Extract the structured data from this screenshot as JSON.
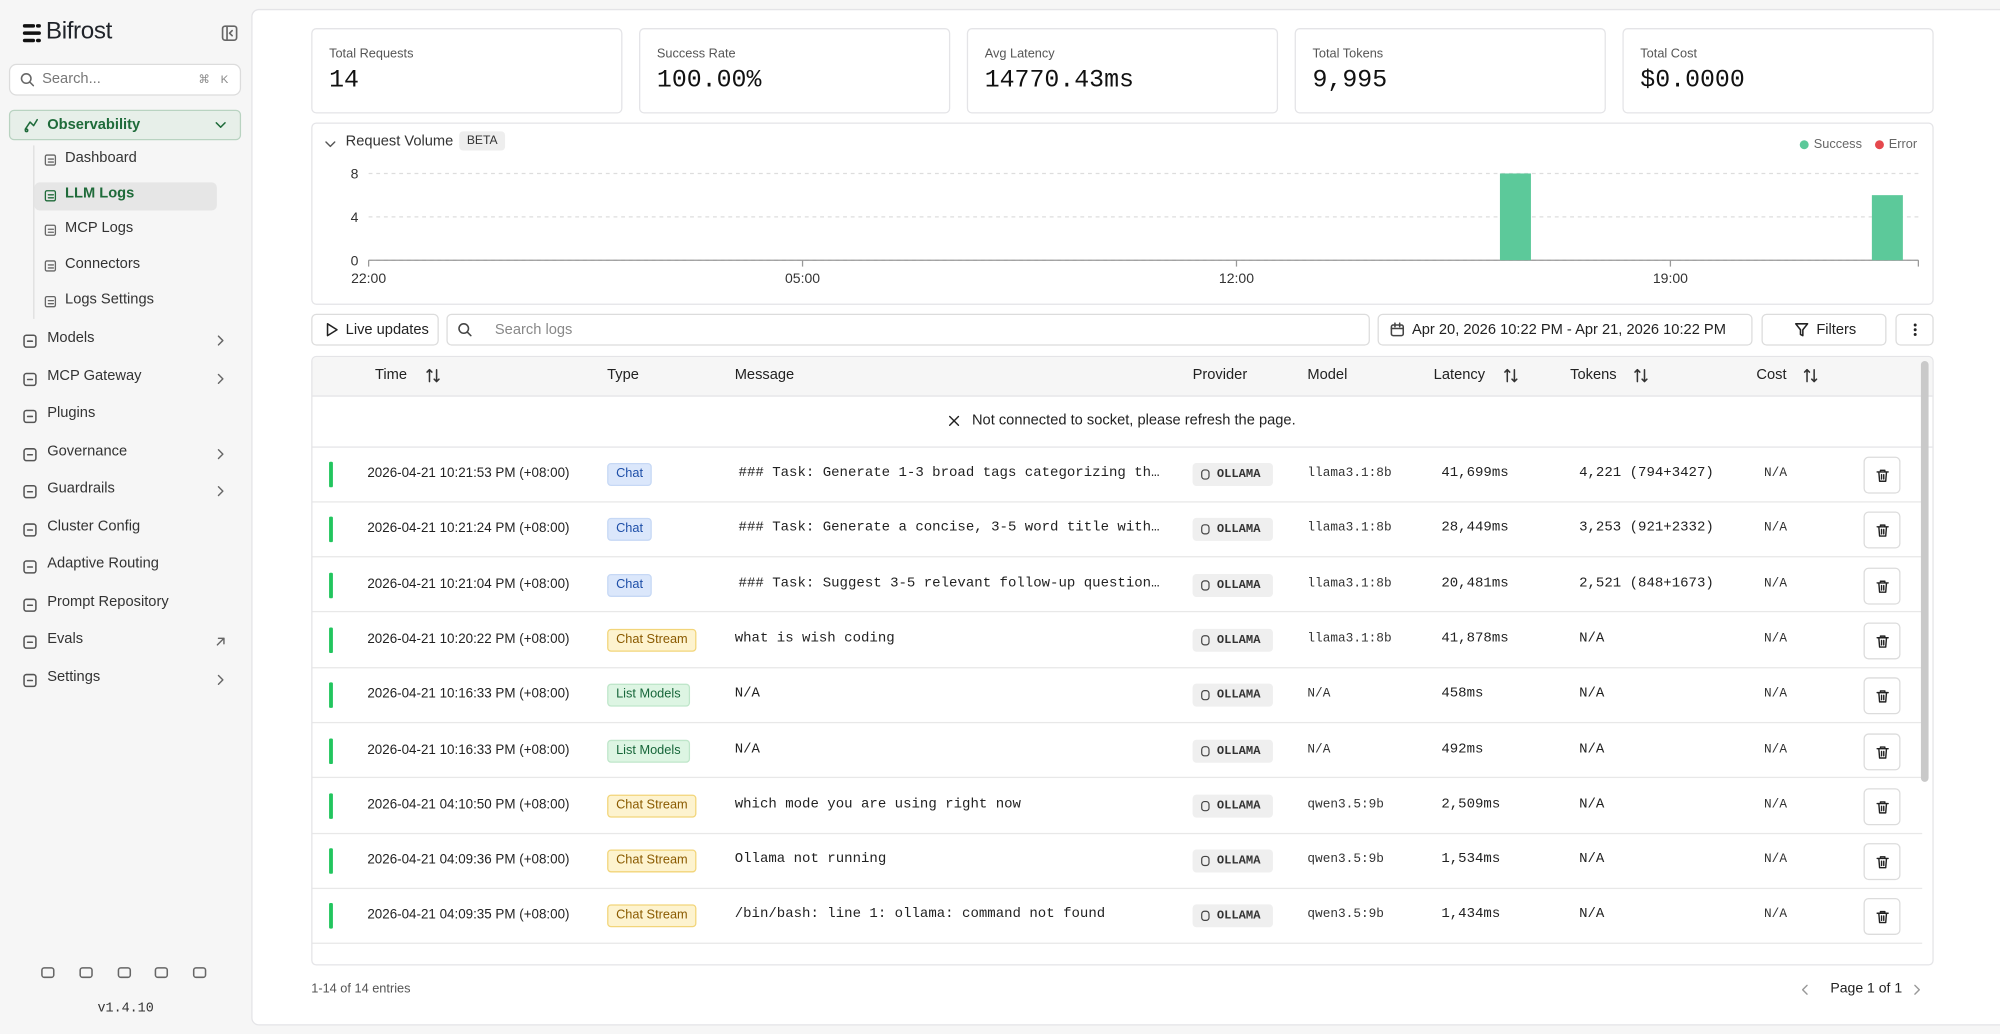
{
  "sidebar": {
    "brand": "Bifrost",
    "search_placeholder": "Search...",
    "search_shortcut": "⌘ K",
    "nav": [
      {
        "label": "Observability",
        "items": [
          "Dashboard",
          "LLM Logs",
          "MCP Logs",
          "Connectors",
          "Logs Settings"
        ]
      },
      {
        "label": "Models"
      },
      {
        "label": "MCP Gateway"
      },
      {
        "label": "Plugins"
      },
      {
        "label": "Governance"
      },
      {
        "label": "Guardrails"
      },
      {
        "label": "Cluster Config"
      },
      {
        "label": "Adaptive Routing"
      },
      {
        "label": "Prompt Repository"
      },
      {
        "label": "Evals"
      },
      {
        "label": "Settings"
      }
    ],
    "version": "v1.4.10"
  },
  "stats": [
    {
      "label": "Total Requests",
      "value": "14"
    },
    {
      "label": "Success Rate",
      "value": "100.00%"
    },
    {
      "label": "Avg Latency",
      "value": "14770.43ms"
    },
    {
      "label": "Total Tokens",
      "value": "9,995"
    },
    {
      "label": "Total Cost",
      "value": "$0.0000"
    }
  ],
  "chart_data": {
    "type": "bar",
    "title": "Request Volume",
    "badge": "BETA",
    "x": [
      40.5,
      46.5
    ],
    "series": [
      {
        "name": "Success",
        "color": "#5cc99a",
        "values": [
          8,
          6
        ]
      },
      {
        "name": "Error",
        "color": "#e5484d",
        "values": [
          0,
          0
        ]
      }
    ],
    "xlim": [
      22,
      47
    ],
    "xticks": [
      {
        "value": 22,
        "label": "22:00"
      },
      {
        "value": 29,
        "label": "05:00"
      },
      {
        "value": 36,
        "label": "12:00"
      },
      {
        "value": 43,
        "label": "19:00"
      }
    ],
    "ylim": [
      0,
      8
    ],
    "yticks": [
      0,
      4,
      8
    ],
    "grid": true,
    "legend": "top-right"
  },
  "toolbar": {
    "live": "Live updates",
    "search_placeholder": "Search logs",
    "date_range": "Apr 20, 2026 10:22 PM - Apr 21, 2026 10:22 PM",
    "filters": "Filters"
  },
  "table": {
    "columns": [
      "Time",
      "Type",
      "Message",
      "Provider",
      "Model",
      "Latency",
      "Tokens",
      "Cost"
    ],
    "notice": "Not connected to socket, please refresh the page.",
    "rows": [
      [
        "2026-04-21 10:21:53 PM (+08:00)",
        "Chat",
        "### Task: Generate 1-3 broad tags categorizing th…",
        "OLLAMA",
        "llama3.1:8b",
        "41,699ms",
        "4,221 (794+3427)",
        "N/A"
      ],
      [
        "2026-04-21 10:21:24 PM (+08:00)",
        "Chat",
        "### Task: Generate a concise, 3-5 word title with…",
        "OLLAMA",
        "llama3.1:8b",
        "28,449ms",
        "3,253 (921+2332)",
        "N/A"
      ],
      [
        "2026-04-21 10:21:04 PM (+08:00)",
        "Chat",
        "### Task: Suggest 3-5 relevant follow-up question…",
        "OLLAMA",
        "llama3.1:8b",
        "20,481ms",
        "2,521 (848+1673)",
        "N/A"
      ],
      [
        "2026-04-21 10:20:22 PM (+08:00)",
        "Chat Stream",
        "what is wish coding",
        "OLLAMA",
        "llama3.1:8b",
        "41,878ms",
        "N/A",
        "N/A"
      ],
      [
        "2026-04-21 10:16:33 PM (+08:00)",
        "List Models",
        "N/A",
        "OLLAMA",
        "N/A",
        "458ms",
        "N/A",
        "N/A"
      ],
      [
        "2026-04-21 10:16:33 PM (+08:00)",
        "List Models",
        "N/A",
        "OLLAMA",
        "N/A",
        "492ms",
        "N/A",
        "N/A"
      ],
      [
        "2026-04-21 04:10:50 PM (+08:00)",
        "Chat Stream",
        "which mode you are using right now",
        "OLLAMA",
        "qwen3.5:9b",
        "2,509ms",
        "N/A",
        "N/A"
      ],
      [
        "2026-04-21 04:09:36 PM (+08:00)",
        "Chat Stream",
        "Ollama not running",
        "OLLAMA",
        "qwen3.5:9b",
        "1,534ms",
        "N/A",
        "N/A"
      ],
      [
        "2026-04-21 04:09:35 PM (+08:00)",
        "Chat Stream",
        "/bin/bash: line 1: ollama: command not found",
        "OLLAMA",
        "qwen3.5:9b",
        "1,434ms",
        "N/A",
        "N/A"
      ]
    ]
  },
  "footer": {
    "entries": "1-14 of 14 entries",
    "page": "Page 1 of 1"
  }
}
